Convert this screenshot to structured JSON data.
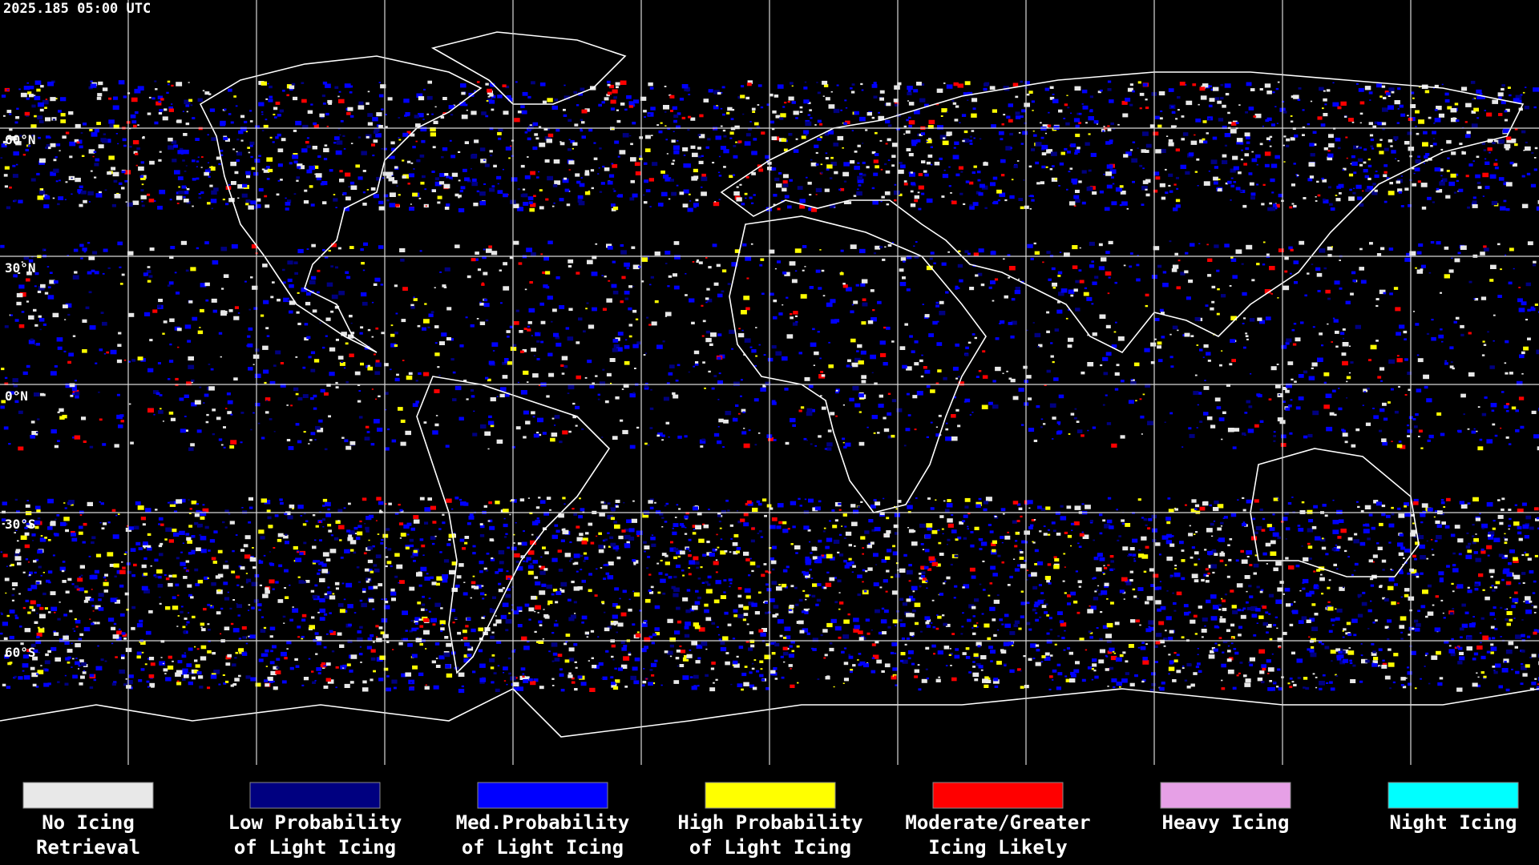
{
  "timestamp": "2025.185 05:00 UTC",
  "latitude_labels": [
    "60°N",
    "30°N",
    "0°N",
    "30°S",
    "60°S"
  ],
  "legend": [
    {
      "label_lines": [
        "No Icing",
        "Retrieval"
      ],
      "color": "#e8e8e8"
    },
    {
      "label_lines": [
        "Low Probability",
        "of Light Icing"
      ],
      "color": "#000080"
    },
    {
      "label_lines": [
        "Med.Probability",
        "of Light Icing"
      ],
      "color": "#0000ff"
    },
    {
      "label_lines": [
        "High Probability",
        "of Light Icing"
      ],
      "color": "#ffff00"
    },
    {
      "label_lines": [
        "Moderate/Greater",
        "Icing Likely"
      ],
      "color": "#ff0000"
    },
    {
      "label_lines": [
        "Heavy Icing"
      ],
      "color": "#e6a0e6"
    },
    {
      "label_lines": [
        "Night Icing"
      ],
      "color": "#00ffff"
    }
  ]
}
